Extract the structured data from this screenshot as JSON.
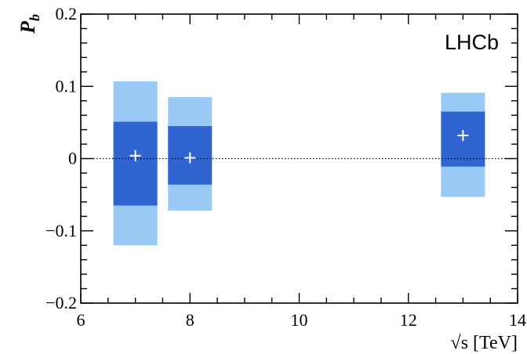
{
  "chart_data": {
    "type": "scatter",
    "title": "",
    "annotation": "LHCb",
    "xlabel": "√s [TeV]",
    "ylabel": "P",
    "ylabel_subscript": "b",
    "xlim": [
      6,
      14
    ],
    "ylim": [
      -0.2,
      0.2
    ],
    "xticks": [
      6,
      8,
      10,
      12,
      14
    ],
    "xtick_labels": [
      "6",
      "8",
      "10",
      "12",
      "14"
    ],
    "yticks": [
      -0.2,
      -0.1,
      0,
      0.1,
      0.2
    ],
    "ytick_labels": [
      "−0.2",
      "−0.1",
      "0",
      "0.1",
      "0.2"
    ],
    "reference_line": {
      "y": 0,
      "style": "dotted"
    },
    "grid": false,
    "points": [
      {
        "x": 7,
        "y": 0.004,
        "inner": [
          -0.065,
          0.051
        ],
        "outer": [
          -0.12,
          0.107
        ]
      },
      {
        "x": 8,
        "y": 0.001,
        "inner": [
          -0.036,
          0.045
        ],
        "outer": [
          -0.072,
          0.085
        ]
      },
      {
        "x": 13,
        "y": 0.032,
        "inner": [
          -0.011,
          0.065
        ],
        "outer": [
          -0.053,
          0.091
        ]
      }
    ],
    "colors": {
      "inner_band": "#3064d0",
      "outer_band": "#99c9f5",
      "marker": "#ffffff"
    }
  }
}
